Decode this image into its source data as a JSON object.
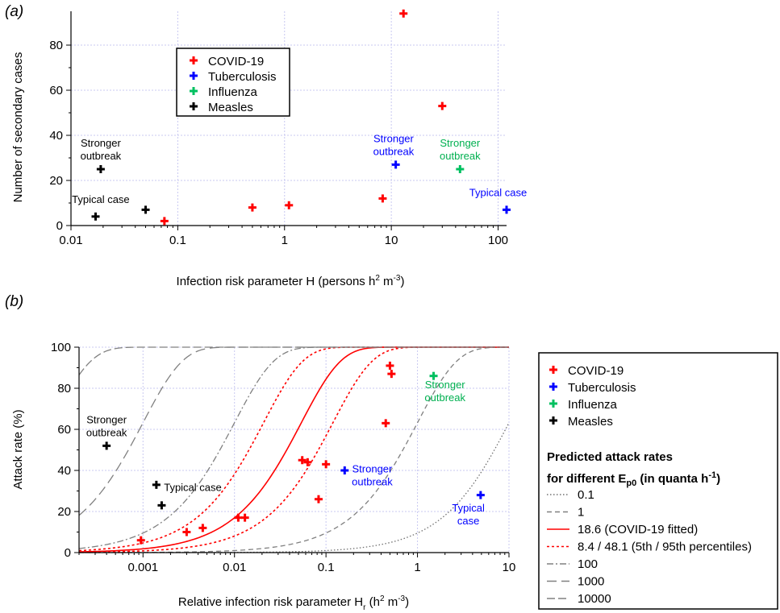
{
  "chart_data": [
    {
      "panel": "(a)",
      "type": "scatter",
      "xscale": "log",
      "xlim": [
        0.01,
        120
      ],
      "ylim": [
        0,
        95
      ],
      "xticks": [
        0.01,
        0.1,
        1,
        10,
        100
      ],
      "xtick_labels": [
        "0.01",
        "0.1",
        "1",
        "10",
        "100"
      ],
      "yticks": [
        0,
        20,
        40,
        60,
        80
      ],
      "ytick_labels": [
        "0",
        "20",
        "40",
        "60",
        "80"
      ],
      "xlabel_main": "Infection risk parameter H (persons h",
      "xlabel_sup1": "2",
      "xlabel_mid": " m",
      "xlabel_sup2": "-3",
      "xlabel_end": ")",
      "ylabel": "Number of secondary cases",
      "grid": true,
      "legend": "top-left-inset",
      "series": [
        {
          "name": "COVID-19",
          "color": "#ff0000",
          "points": [
            [
              0.075,
              2
            ],
            [
              0.5,
              8
            ],
            [
              1.1,
              9
            ],
            [
              8.3,
              12
            ],
            [
              13,
              94
            ],
            [
              30,
              53
            ]
          ]
        },
        {
          "name": "Tuberculosis",
          "color": "#0000ff",
          "points": [
            [
              11,
              27
            ],
            [
              120,
              7
            ]
          ]
        },
        {
          "name": "Influenza",
          "color": "#00c060",
          "points": [
            [
              44,
              25
            ]
          ]
        },
        {
          "name": "Measles",
          "color": "#000000",
          "points": [
            [
              0.017,
              4
            ],
            [
              0.019,
              25
            ],
            [
              0.05,
              7
            ]
          ]
        }
      ],
      "annotations": [
        {
          "lines": [
            "Stronger",
            "outbreak"
          ],
          "color": "#000000",
          "x": 0.019,
          "y": 35
        },
        {
          "lines": [
            "Typical case"
          ],
          "color": "#000000",
          "x": 0.019,
          "y": 10
        },
        {
          "lines": [
            "Stronger",
            "outbreak"
          ],
          "color": "#0000ff",
          "x": 10.5,
          "y": 37
        },
        {
          "lines": [
            "Stronger",
            "outbreak"
          ],
          "color": "#00b050",
          "x": 44,
          "y": 35
        },
        {
          "lines": [
            "Typical case"
          ],
          "color": "#0000ff",
          "x": 100,
          "y": 13
        }
      ]
    },
    {
      "panel": "(b)",
      "type": "scatter",
      "xscale": "log",
      "xlim": [
        0.0002,
        10
      ],
      "ylim": [
        0,
        100
      ],
      "xticks": [
        0.001,
        0.01,
        0.1,
        1,
        10
      ],
      "xtick_labels": [
        "0.001",
        "0.01",
        "0.1",
        "1",
        "10"
      ],
      "yticks": [
        0,
        20,
        40,
        60,
        80,
        100
      ],
      "ytick_labels": [
        "0",
        "20",
        "40",
        "60",
        "80",
        "100"
      ],
      "xlabel_main": "Relative infection risk parameter H",
      "xlabel_sub": "r",
      "xlabel_mid": " (h",
      "xlabel_sup1": "2",
      "xlabel_mid2": " m",
      "xlabel_sup2": "-3",
      "xlabel_end": ")",
      "ylabel": "Attack rate (%)",
      "grid": true,
      "legend": "right-outside",
      "series": [
        {
          "name": "COVID-19",
          "color": "#ff0000",
          "points": [
            [
              0.00095,
              6
            ],
            [
              0.003,
              10
            ],
            [
              0.0045,
              12
            ],
            [
              0.011,
              17
            ],
            [
              0.013,
              17
            ],
            [
              0.055,
              45
            ],
            [
              0.063,
              44
            ],
            [
              0.083,
              26
            ],
            [
              0.1,
              43
            ],
            [
              0.45,
              63
            ],
            [
              0.5,
              91
            ],
            [
              0.52,
              87
            ]
          ]
        },
        {
          "name": "Tuberculosis",
          "color": "#0000ff",
          "points": [
            [
              0.16,
              40
            ],
            [
              4.9,
              28
            ]
          ]
        },
        {
          "name": "Influenza",
          "color": "#00c060",
          "points": [
            [
              1.5,
              86
            ]
          ]
        },
        {
          "name": "Measles",
          "color": "#000000",
          "points": [
            [
              0.0004,
              52
            ],
            [
              0.0014,
              33
            ],
            [
              0.0016,
              23
            ]
          ]
        }
      ],
      "curves_title": "Predicted attack rates",
      "curves_subtitle_main": "for different E",
      "curves_subtitle_sub": "p0",
      "curves_subtitle_mid": " (in quanta h",
      "curves_subtitle_sup": "-1",
      "curves_subtitle_end": ")",
      "curves": [
        {
          "label": "0.1",
          "ep0": 0.1,
          "color": "#707070",
          "dash": "1.5 2.5"
        },
        {
          "label": "1",
          "ep0": 1,
          "color": "#808080",
          "dash": "6 4"
        },
        {
          "label": "18.6 (COVID-19 fitted)",
          "ep0": 18.6,
          "color": "#ff0000",
          "dash": ""
        },
        {
          "label": "8.4 / 48.1 (5th / 95th percentiles)",
          "ep0": [
            8.4,
            48.1
          ],
          "color": "#ff0000",
          "dash": "3 3"
        },
        {
          "label": "100",
          "ep0": 100,
          "color": "#808080",
          "dash": "8 3 2 3"
        },
        {
          "label": "1000",
          "ep0": 1000,
          "color": "#808080",
          "dash": "12 6"
        },
        {
          "label": "10000",
          "ep0": 10000,
          "color": "#808080",
          "dash": "10 4"
        }
      ],
      "annotations": [
        {
          "lines": [
            "Stronger",
            "outbreak"
          ],
          "color": "#000000",
          "x": 0.0004,
          "y": 63
        },
        {
          "lines": [
            "Typical case"
          ],
          "color": "#000000",
          "x": 0.0035,
          "y": 30
        },
        {
          "lines": [
            "Stronger",
            "outbreak"
          ],
          "color": "#0000ff",
          "x": 0.32,
          "y": 39
        },
        {
          "lines": [
            "Stronger",
            "outbreak"
          ],
          "color": "#00b050",
          "x": 2.0,
          "y": 80
        },
        {
          "lines": [
            "Typical",
            "case"
          ],
          "color": "#0000ff",
          "x": 3.6,
          "y": 20
        }
      ]
    }
  ]
}
